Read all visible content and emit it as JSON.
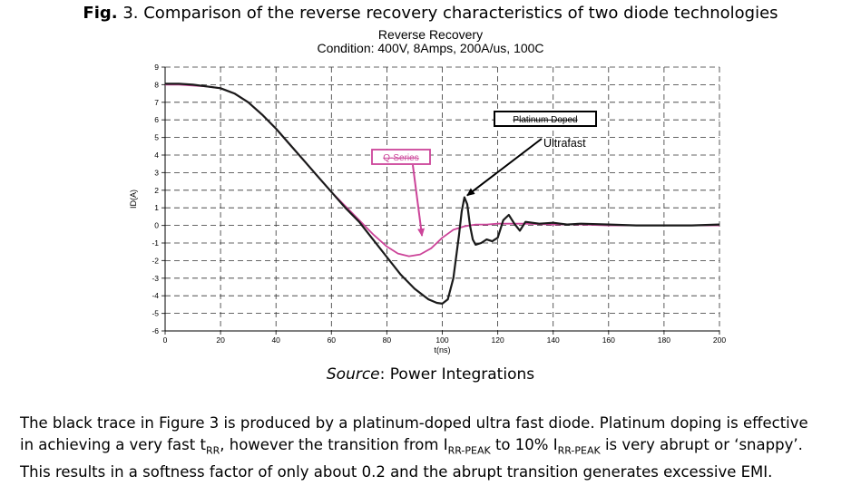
{
  "figure": {
    "label": "Fig.",
    "caption": " 3. Comparison of the reverse recovery characteristics of two diode technologies"
  },
  "source": {
    "label": "Source",
    "text": ": Power Integrations"
  },
  "paragraph": {
    "s1": "The black trace in Figure 3 is produced by a platinum-doped ultra fast diode. Platinum doping is effective",
    "s2a": "in achieving a very fast t",
    "s2_sub1": "RR",
    "s2b": ", however the transition from I",
    "s2_sub2": "RR-PEAK",
    "s2c": " to 10% I",
    "s2_sub3": "RR-PEAK",
    "s2d": " is very abrupt or ‘snappy’.",
    "s3": "This results in a softness factor of only about 0.2 and the abrupt transition generates excessive EMI."
  },
  "colors": {
    "platinum": "#1a1a1a",
    "qseries": "#cc4499",
    "grid": "#333333"
  },
  "chart_data": {
    "type": "line",
    "title": "Reverse Recovery",
    "subtitle": "Condition: 400V, 8Amps, 200A/us, 100C",
    "xlabel": "t(ns)",
    "ylabel": "ID(A)",
    "xlim": [
      0,
      200
    ],
    "ylim": [
      -6,
      9
    ],
    "xticks": [
      0,
      20,
      40,
      60,
      80,
      100,
      120,
      140,
      160,
      180,
      200
    ],
    "yticks": [
      -6,
      -5,
      -4,
      -3,
      -2,
      -1,
      0,
      1,
      2,
      3,
      4,
      5,
      6,
      7,
      8,
      9
    ],
    "grid": true,
    "annotations": [
      {
        "text": "Platinum Doped",
        "target": [
          108,
          1.6
        ]
      },
      {
        "text": "Ultrafast"
      },
      {
        "text": "Q-Series",
        "target": [
          93,
          -0.9
        ]
      }
    ],
    "series": [
      {
        "name": "Q-Series",
        "color": "#cc4499",
        "x": [
          0,
          5,
          10,
          15,
          20,
          25,
          30,
          35,
          40,
          45,
          50,
          55,
          60,
          65,
          70,
          75,
          80,
          84,
          88,
          92,
          96,
          100,
          104,
          108,
          112,
          116,
          120,
          125,
          130,
          140,
          150,
          160,
          170,
          180,
          190,
          200
        ],
        "y": [
          8.0,
          8.0,
          7.95,
          7.9,
          7.8,
          7.5,
          7.0,
          6.3,
          5.5,
          4.6,
          3.7,
          2.8,
          1.9,
          1.1,
          0.3,
          -0.5,
          -1.2,
          -1.6,
          -1.75,
          -1.65,
          -1.3,
          -0.7,
          -0.25,
          -0.05,
          0.05,
          0.05,
          0.1,
          0.1,
          0.1,
          0.05,
          0.05,
          0.0,
          0.0,
          0.0,
          0.0,
          0.0
        ]
      },
      {
        "name": "Platinum Doped",
        "color": "#1a1a1a",
        "x": [
          0,
          5,
          10,
          15,
          20,
          25,
          30,
          35,
          40,
          45,
          50,
          55,
          60,
          65,
          70,
          75,
          80,
          85,
          90,
          95,
          98,
          100,
          102,
          104,
          106,
          107,
          108,
          109,
          110,
          111,
          112,
          114,
          116,
          118,
          120,
          122,
          124,
          126,
          128,
          130,
          135,
          140,
          145,
          150,
          160,
          170,
          180,
          190,
          200
        ],
        "y": [
          8.05,
          8.05,
          8.0,
          7.9,
          7.8,
          7.5,
          7.0,
          6.3,
          5.5,
          4.6,
          3.7,
          2.8,
          1.9,
          1.0,
          0.2,
          -0.8,
          -1.8,
          -2.8,
          -3.6,
          -4.2,
          -4.4,
          -4.45,
          -4.2,
          -3.0,
          -0.6,
          0.8,
          1.6,
          1.2,
          0.0,
          -0.8,
          -1.1,
          -1.0,
          -0.8,
          -0.9,
          -0.7,
          0.3,
          0.6,
          0.1,
          -0.3,
          0.2,
          0.1,
          0.15,
          0.05,
          0.1,
          0.05,
          0.0,
          0.0,
          0.0,
          0.05
        ]
      }
    ]
  }
}
